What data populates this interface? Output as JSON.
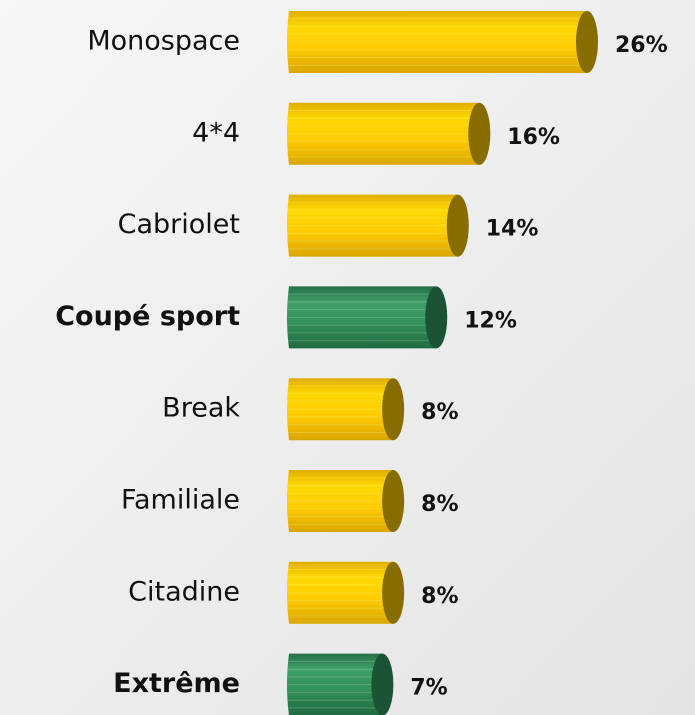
{
  "chart_data": {
    "type": "bar",
    "orientation": "horizontal",
    "categories": [
      "Monospace",
      "4*4",
      "Cabriolet",
      "Coupé sport",
      "Break",
      "Familiale",
      "Citadine",
      "Extrême"
    ],
    "values": [
      26,
      16,
      14,
      12,
      8,
      8,
      8,
      7
    ],
    "value_labels": [
      "26%",
      "16%",
      "14%",
      "12%",
      "8%",
      "8%",
      "8%",
      "7%"
    ],
    "color": "#f5c400",
    "highlight_color": "#2e8b57",
    "highlighted": [
      false,
      false,
      false,
      true,
      false,
      false,
      false,
      true
    ]
  }
}
